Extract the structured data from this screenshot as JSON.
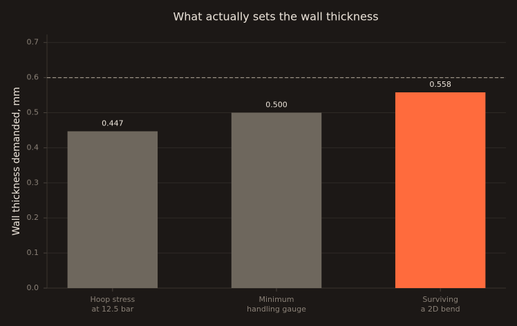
{
  "chart_data": {
    "type": "bar",
    "title": "What actually sets the wall thickness",
    "y_label": "Wall thickness demanded, mm",
    "categories": [
      "Hoop stress\nat 12.5 bar",
      "Minimum\nhandling gauge",
      "Surviving\na 2D bend"
    ],
    "values": [
      0.447,
      0.5,
      0.558
    ],
    "value_labels": [
      "0.447",
      "0.500",
      "0.558"
    ],
    "colors": [
      "#6e675d",
      "#6e675d",
      "#ff6b3d"
    ],
    "reference_line": 0.6,
    "ylim": [
      0,
      0.723
    ],
    "yticks": [
      {
        "value": 0,
        "label": "0.0"
      },
      0.1,
      0.2,
      0.3,
      0.4,
      0.5,
      0.6,
      0.7
    ],
    "grid": true
  }
}
